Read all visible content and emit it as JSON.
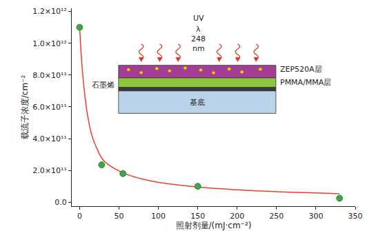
{
  "chart_data": {
    "type": "scatter",
    "x_label": "照射剂量/(mJ·cm⁻²)",
    "y_label": "载流子浓度/cm⁻²",
    "series": [
      {
        "type": "scatter",
        "marker": "circle",
        "color": "#3aa845",
        "x": [
          0,
          28,
          55,
          150,
          330
        ],
        "values": [
          1100000000000.0,
          235000000000.0,
          180000000000.0,
          100000000000.0,
          25000000000.0
        ]
      },
      {
        "type": "line",
        "line_style": "solid",
        "color": "#e8402a",
        "x": [
          0,
          3,
          6,
          10,
          15,
          20,
          30,
          45,
          60,
          80,
          100,
          150,
          200,
          250,
          300,
          330
        ],
        "values": [
          1100000000000.0,
          860000000000.0,
          700000000000.0,
          550000000000.0,
          430000000000.0,
          360000000000.0,
          265000000000.0,
          210000000000.0,
          175000000000.0,
          145000000000.0,
          125000000000.0,
          95000000000.0,
          78000000000.0,
          66000000000.0,
          58000000000.0,
          53000000000.0
        ]
      }
    ],
    "xlim": [
      -10,
      350
    ],
    "xticks": [
      0,
      50,
      100,
      150,
      200,
      250,
      300,
      350
    ],
    "ylim": [
      -25000000000.0,
      1220000000000.0
    ],
    "yticks": [
      {
        "value": 0,
        "label": "0.0"
      },
      {
        "value": 200000000000.0,
        "label": "2.0×10¹¹"
      },
      {
        "value": 400000000000.0,
        "label": "4.0×10¹¹"
      },
      {
        "value": 600000000000.0,
        "label": "6.0×10¹¹"
      },
      {
        "value": 800000000000.0,
        "label": "8.0×10¹¹"
      },
      {
        "value": 1000000000000.0,
        "label": "1.0×10¹²"
      },
      {
        "value": 1200000000000.0,
        "label": "1.2×10¹²"
      }
    ],
    "grid": false,
    "annotations": [
      "UV",
      "λ",
      "248",
      "nm",
      "ZEP520A层",
      "PMMA/MMA层",
      "石墨烯",
      "基底"
    ]
  }
}
